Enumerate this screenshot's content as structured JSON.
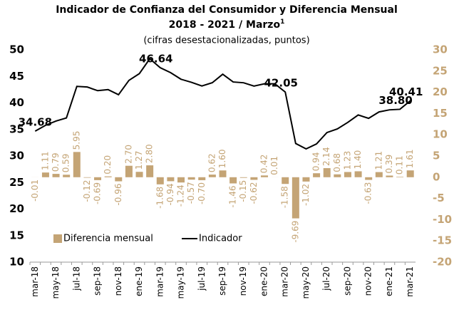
{
  "chart_data": {
    "type": "bar+line",
    "title": "Indicador de Confianza del Consumidor y Diferencia Mensual",
    "subtitle": "2018 - 2021 / Marzo",
    "subtitle_sup": "1",
    "note": "(cifras desestacionalizadas, puntos)",
    "categories": [
      "mar-18",
      null,
      "may-18",
      null,
      "jul-18",
      null,
      "sep-18",
      null,
      "nov-18",
      null,
      "ene-19",
      null,
      "mar-19",
      null,
      "may-19",
      null,
      "jul-19",
      null,
      "sep-19",
      null,
      "nov-19",
      null,
      "ene-20",
      null,
      "mar-20",
      null,
      "may-20",
      null,
      "jul-20",
      null,
      "sep-20",
      null,
      "nov-20",
      null,
      "ene-21",
      null,
      "mar-21"
    ],
    "series": [
      {
        "name": "Diferencia mensual",
        "type": "bar",
        "axis": "y2",
        "color": "#c4a475",
        "values": [
          -0.01,
          1.11,
          0.79,
          0.59,
          5.95,
          -0.12,
          -0.69,
          0.2,
          -0.96,
          2.7,
          1.27,
          2.8,
          -1.68,
          -0.94,
          -1.24,
          -0.57,
          -0.7,
          0.62,
          1.6,
          -1.46,
          -0.15,
          -0.62,
          0.42,
          0.01,
          -1.58,
          -9.69,
          -1.02,
          0.94,
          2.14,
          0.68,
          1.23,
          1.4,
          -0.63,
          1.21,
          0.39,
          0.11,
          1.61
        ],
        "value_labels": [
          "-0.01",
          "1.11",
          "0.79",
          "0.59",
          "5.95",
          "-0.12",
          "-0.69",
          "0.20",
          "-0.96",
          "2.70",
          "1.27",
          "2.80",
          "-1.68",
          "-0.94",
          "-1.24",
          "-0.57",
          "-0.70",
          "0.62",
          "1.60",
          "-1.46",
          "-0.15",
          "-0.62",
          "0.42",
          "0.01",
          "-1.58",
          "-9.69",
          "-1.02",
          "0.94",
          "2.14",
          "0.68",
          "1.23",
          "1.40",
          "-0.63",
          "1.21",
          "0.39",
          "0.11",
          "1.61"
        ]
      },
      {
        "name": "Indicador",
        "type": "line",
        "color": "#000000",
        "values": [
          34.68,
          35.79,
          36.58,
          37.17,
          43.12,
          43.0,
          42.31,
          42.51,
          41.55,
          44.25,
          45.52,
          48.32,
          46.64,
          45.7,
          44.46,
          43.89,
          43.19,
          43.81,
          45.41,
          43.95,
          43.8,
          43.18,
          43.6,
          43.61,
          42.05,
          32.36,
          31.34,
          32.28,
          34.42,
          35.1,
          36.33,
          37.73,
          37.1,
          38.31,
          38.7,
          38.8,
          40.41
        ],
        "value_labels": [
          "34.68",
          null,
          null,
          null,
          null,
          null,
          null,
          null,
          null,
          null,
          null,
          null,
          "46.64",
          null,
          null,
          null,
          null,
          null,
          null,
          null,
          null,
          null,
          null,
          null,
          "42.05",
          null,
          null,
          null,
          null,
          null,
          null,
          null,
          null,
          null,
          null,
          "38.80",
          "40.41"
        ]
      }
    ],
    "ylim": [
      10,
      50
    ],
    "yticks": [
      10,
      15,
      20,
      25,
      30,
      35,
      40,
      45,
      50
    ],
    "y2lim": [
      -20,
      30
    ],
    "y2ticks": [
      -20,
      -15,
      -10,
      -5,
      0,
      5,
      10,
      15,
      20,
      25,
      30
    ],
    "y2_color": "#c4a475",
    "legend": "lower left"
  }
}
